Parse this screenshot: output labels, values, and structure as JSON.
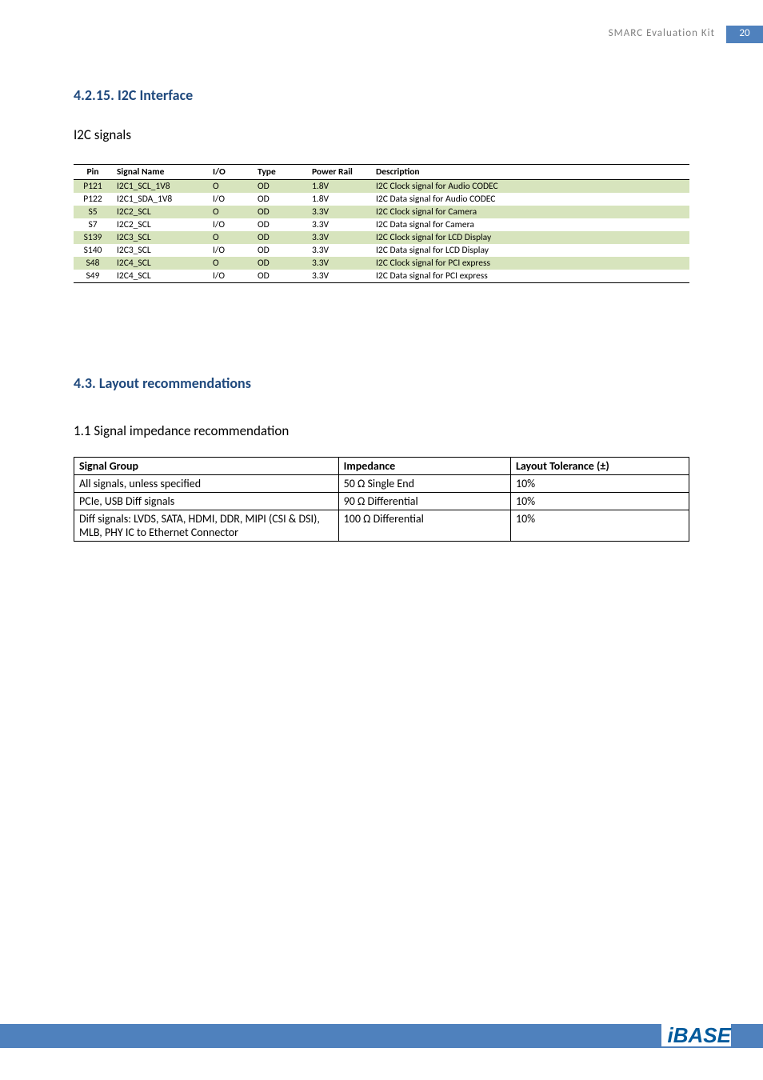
{
  "header": {
    "title": "SMARC  Evaluation  Kit",
    "page_num": "20"
  },
  "section1": {
    "heading": "4.2.15.   I2C Interface",
    "sub": "I2C signals",
    "table": {
      "columns": [
        "Pin",
        "Signal Name",
        "I/O",
        "Type",
        "Power Rail",
        "Description"
      ],
      "rows": [
        [
          "P121",
          "I2C1_SCL_1V8",
          "O",
          "OD",
          "1.8V",
          "I2C Clock signal for Audio CODEC"
        ],
        [
          "P122",
          "I2C1_SDA_1V8",
          "I/O",
          "OD",
          "1.8V",
          "I2C Data signal for Audio CODEC"
        ],
        [
          "S5",
          "I2C2_SCL",
          "O",
          "OD",
          "3.3V",
          "I2C Clock signal for Camera"
        ],
        [
          "S7",
          "I2C2_SCL",
          "I/O",
          "OD",
          "3.3V",
          "I2C Data signal for Camera"
        ],
        [
          "S139",
          "I2C3_SCL",
          "O",
          "OD",
          "3.3V",
          "I2C Clock signal for LCD Display"
        ],
        [
          "S140",
          "I2C3_SCL",
          "I/O",
          "OD",
          "3.3V",
          "I2C Data signal for LCD Display"
        ],
        [
          "S48",
          "I2C4_SCL",
          "O",
          "OD",
          "3.3V",
          "I2C Clock signal for PCI express"
        ],
        [
          "S49",
          "I2C4_SCL",
          "I/O",
          "OD",
          "3.3V",
          "I2C Data signal for PCI express"
        ]
      ],
      "alt_rows": [
        0,
        2,
        4,
        6
      ],
      "alt_color": "#d7e4bd"
    }
  },
  "section2": {
    "heading": "4.3.  Layout recommendations",
    "sub": "1.1 Signal impedance recommendation",
    "table": {
      "columns": [
        "Signal Group",
        "Impedance",
        "Layout Tolerance (±)"
      ],
      "rows": [
        [
          "All signals, unless specified",
          "50 Ω Single End",
          "10%"
        ],
        [
          "PCIe, USB Diff signals",
          "90 Ω Differential",
          "10%"
        ],
        [
          "Diff signals: LVDS, SATA, HDMI, DDR, MIPI (CSI & DSI), MLB, PHY IC to Ethernet Connector",
          "100 Ω Differential",
          "10%"
        ]
      ]
    }
  },
  "logo": "iBASE",
  "colors": {
    "heading_blue": "#1f497d",
    "bar_blue": "#4f81bd",
    "row_alt": "#d7e4bd",
    "header_grey": "#7f7f7f",
    "logo_blue": "#005a9c"
  }
}
